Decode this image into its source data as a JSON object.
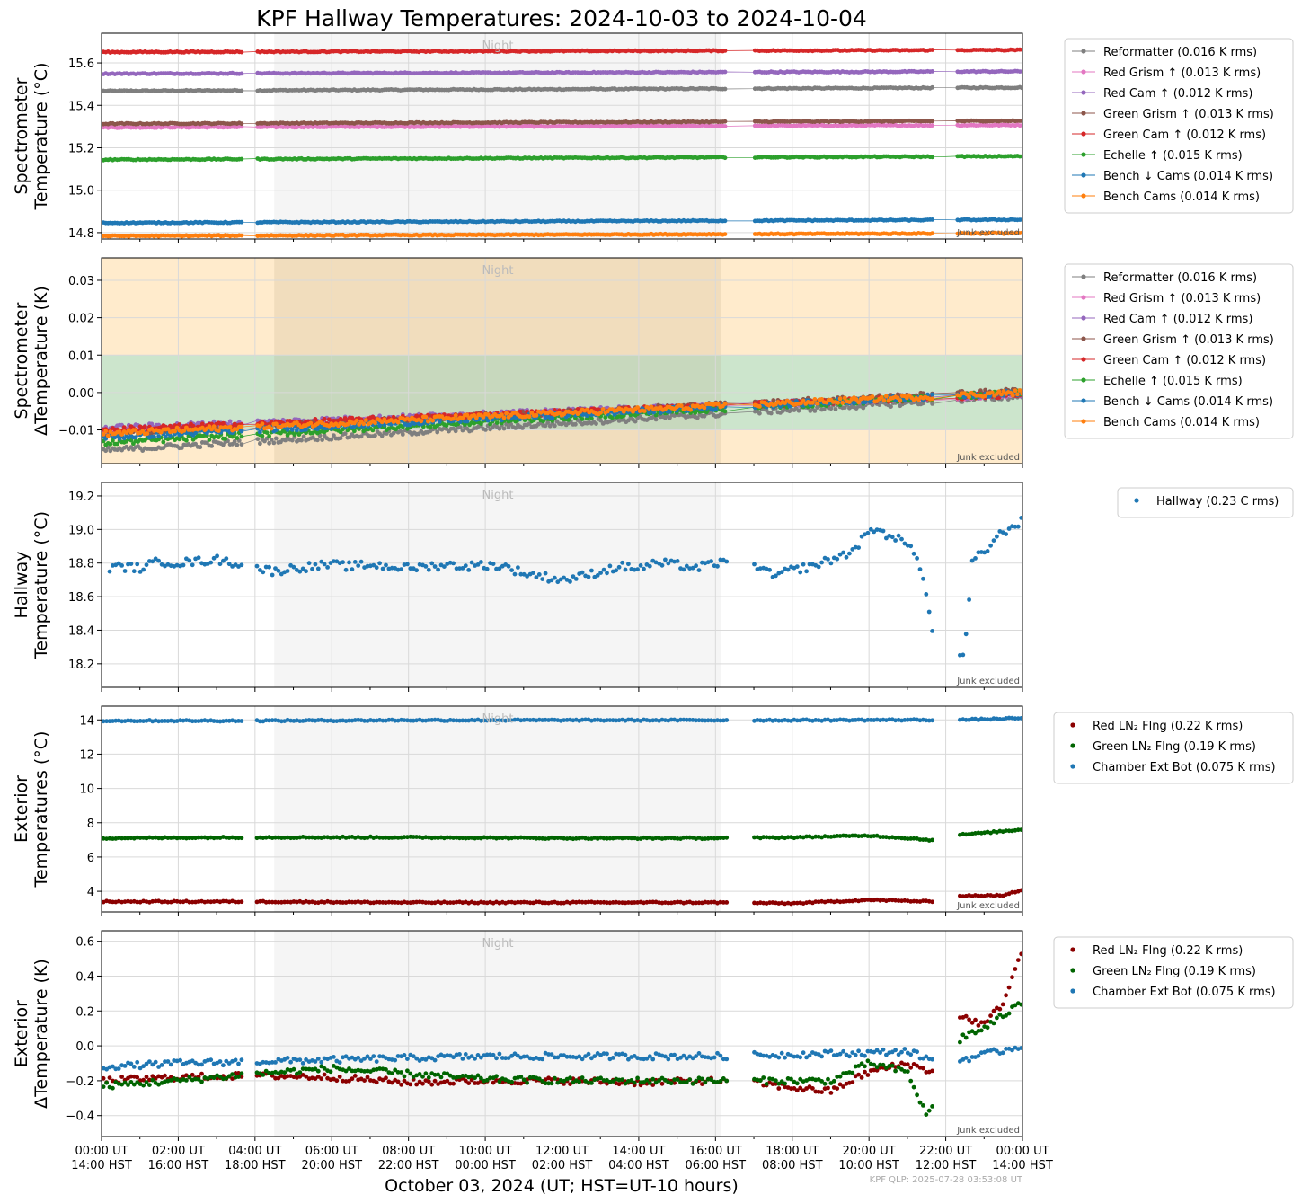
{
  "figure": {
    "title": "KPF Hallway Temperatures: 2024-10-03 to 2024-10-04",
    "xlabel": "October 03, 2024 (UT; HST=UT-10 hours)",
    "footer": "KPF QLP: 2025-07-28 03:53:08 UT",
    "night_label": "Night",
    "junk_label": "Junk excluded",
    "colors": {
      "night_shade": "#f5f5f5",
      "grid": "#d9d9d9",
      "band_warn": "#ffebcc",
      "band_ok": "#cce5cc"
    }
  },
  "x_ticks": [
    {
      "ut": "00:00 UT",
      "hst": "14:00 HST",
      "hour": 0
    },
    {
      "ut": "02:00 UT",
      "hst": "16:00 HST",
      "hour": 2
    },
    {
      "ut": "04:00 UT",
      "hst": "18:00 HST",
      "hour": 4
    },
    {
      "ut": "06:00 UT",
      "hst": "20:00 HST",
      "hour": 6
    },
    {
      "ut": "08:00 UT",
      "hst": "22:00 HST",
      "hour": 8
    },
    {
      "ut": "10:00 UT",
      "hst": "00:00 HST",
      "hour": 10
    },
    {
      "ut": "12:00 UT",
      "hst": "02:00 HST",
      "hour": 12
    },
    {
      "ut": "14:00 UT",
      "hst": "04:00 HST",
      "hour": 14
    },
    {
      "ut": "16:00 UT",
      "hst": "06:00 HST",
      "hour": 16
    },
    {
      "ut": "18:00 UT",
      "hst": "08:00 HST",
      "hour": 18
    },
    {
      "ut": "20:00 UT",
      "hst": "10:00 HST",
      "hour": 20
    },
    {
      "ut": "22:00 UT",
      "hst": "12:00 HST",
      "hour": 22
    },
    {
      "ut": "00:00 UT",
      "hst": "14:00 HST",
      "hour": 24
    }
  ],
  "chart_data": [
    {
      "type": "scatter",
      "panel": "spectrometer_temperature",
      "ylabel": [
        "Spectrometer",
        "Temperature (°C)"
      ],
      "ylim": [
        14.77,
        15.74
      ],
      "yticks": [
        14.8,
        15.0,
        15.2,
        15.4,
        15.6
      ],
      "xlim_hours": [
        0,
        24
      ],
      "night_hours": [
        4.5,
        16.15
      ],
      "grid": true,
      "legend_placement": "outside-right",
      "series": [
        {
          "name": "Reformatter (0.016 K rms)",
          "color": "#7f7f7f",
          "start": 15.468,
          "end": 15.484
        },
        {
          "name": "Red Grism ↑ (0.013 K rms)",
          "color": "#e377c2",
          "start": 15.296,
          "end": 15.307
        },
        {
          "name": "Red Cam ↑ (0.012 K rms)",
          "color": "#9467bd",
          "start": 15.549,
          "end": 15.56
        },
        {
          "name": "Green Grism ↑ (0.013 K rms)",
          "color": "#8c564b",
          "start": 15.313,
          "end": 15.327
        },
        {
          "name": "Green Cam ↑ (0.012 K rms)",
          "color": "#d62728",
          "start": 15.651,
          "end": 15.661
        },
        {
          "name": "Echelle ↑ (0.015 K rms)",
          "color": "#2ca02c",
          "start": 15.144,
          "end": 15.16
        },
        {
          "name": "Bench ↓ Cams (0.014 K rms)",
          "color": "#1f77b4",
          "start": 14.846,
          "end": 14.861
        },
        {
          "name": "Bench Cams (0.014 K rms)",
          "color": "#ff7f0e",
          "start": 14.784,
          "end": 14.797
        }
      ]
    },
    {
      "type": "scatter",
      "panel": "spectrometer_delta",
      "ylabel": [
        "Spectrometer",
        "ΔTemperature (K)"
      ],
      "ylim": [
        -0.019,
        0.036
      ],
      "yticks": [
        -0.01,
        0.0,
        0.01,
        0.02,
        0.03
      ],
      "ytick_labels": [
        "−0.01",
        "0.00",
        "0.01",
        "0.02",
        "0.03"
      ],
      "ok_band": [
        -0.01,
        0.01
      ],
      "xlim_hours": [
        0,
        24
      ],
      "night_hours": [
        4.5,
        16.15
      ],
      "grid": true,
      "legend_placement": "outside-right",
      "series": [
        {
          "name": "Reformatter (0.016 K rms)",
          "color": "#7f7f7f",
          "start": -0.0155,
          "end": -0.001
        },
        {
          "name": "Red Grism ↑ (0.013 K rms)",
          "color": "#e377c2",
          "start": -0.0105,
          "end": -0.0005
        },
        {
          "name": "Red Cam ↑ (0.012 K rms)",
          "color": "#9467bd",
          "start": -0.0095,
          "end": -0.0005
        },
        {
          "name": "Green Grism ↑ (0.013 K rms)",
          "color": "#8c564b",
          "start": -0.011,
          "end": 0.0005
        },
        {
          "name": "Green Cam ↑ (0.012 K rms)",
          "color": "#d62728",
          "start": -0.01,
          "end": -0.0005
        },
        {
          "name": "Echelle ↑ (0.015 K rms)",
          "color": "#2ca02c",
          "start": -0.0135,
          "end": 0.0
        },
        {
          "name": "Bench ↓ Cams (0.014 K rms)",
          "color": "#1f77b4",
          "start": -0.012,
          "end": 0.0
        },
        {
          "name": "Bench Cams (0.014 K rms)",
          "color": "#ff7f0e",
          "start": -0.011,
          "end": 0.0
        }
      ]
    },
    {
      "type": "scatter",
      "panel": "hallway",
      "ylabel": [
        "Hallway",
        "Temperature (°C)"
      ],
      "ylim": [
        18.06,
        19.28
      ],
      "yticks": [
        18.2,
        18.4,
        18.6,
        18.8,
        19.0,
        19.2
      ],
      "xlim_hours": [
        0,
        24
      ],
      "night_hours": [
        4.5,
        16.15
      ],
      "grid": true,
      "legend_placement": "outside-right",
      "series": [
        {
          "name": "Hallway (0.23 C rms)",
          "color": "#1f77b4",
          "points": [
            [
              0.2,
              18.77
            ],
            [
              0.5,
              18.78
            ],
            [
              1.0,
              18.77
            ],
            [
              1.5,
              18.81
            ],
            [
              2.0,
              18.8
            ],
            [
              2.5,
              18.81
            ],
            [
              3.0,
              18.82
            ],
            [
              3.5,
              18.8
            ],
            [
              4.5,
              18.75
            ],
            [
              5.0,
              18.77
            ],
            [
              5.5,
              18.78
            ],
            [
              6.0,
              18.79
            ],
            [
              6.5,
              18.78
            ],
            [
              7.0,
              18.79
            ],
            [
              7.5,
              18.78
            ],
            [
              8.0,
              18.77
            ],
            [
              8.5,
              18.78
            ],
            [
              9.0,
              18.79
            ],
            [
              9.5,
              18.78
            ],
            [
              10.0,
              18.79
            ],
            [
              10.5,
              18.78
            ],
            [
              11.0,
              18.74
            ],
            [
              11.5,
              18.72
            ],
            [
              12.0,
              18.7
            ],
            [
              12.5,
              18.72
            ],
            [
              13.0,
              18.75
            ],
            [
              13.5,
              18.78
            ],
            [
              14.0,
              18.77
            ],
            [
              14.5,
              18.8
            ],
            [
              15.0,
              18.79
            ],
            [
              15.5,
              18.77
            ],
            [
              16.0,
              18.8
            ],
            [
              17.0,
              18.8
            ],
            [
              17.5,
              18.72
            ],
            [
              18.0,
              18.76
            ],
            [
              18.5,
              18.78
            ],
            [
              19.0,
              18.82
            ],
            [
              19.5,
              18.86
            ],
            [
              20.0,
              18.98
            ],
            [
              20.3,
              19.02
            ],
            [
              20.5,
              18.95
            ],
            [
              21.0,
              18.93
            ],
            [
              21.3,
              18.8
            ],
            [
              21.5,
              18.6
            ],
            [
              21.7,
              18.35
            ],
            [
              21.9,
              18.18
            ],
            [
              22.1,
              18.12
            ],
            [
              22.3,
              18.2
            ],
            [
              22.5,
              18.28
            ],
            [
              22.7,
              18.82
            ],
            [
              23.0,
              18.86
            ],
            [
              23.3,
              18.95
            ],
            [
              23.6,
              19.0
            ],
            [
              24.0,
              19.05
            ]
          ]
        }
      ]
    },
    {
      "type": "scatter",
      "panel": "exterior_temperature",
      "ylabel": [
        "Exterior",
        "Temperatures (°C)"
      ],
      "ylim": [
        2.8,
        14.8
      ],
      "yticks": [
        4,
        6,
        8,
        10,
        12,
        14
      ],
      "xlim_hours": [
        0,
        24
      ],
      "night_hours": [
        4.5,
        16.15
      ],
      "grid": true,
      "legend_placement": "outside-right",
      "series": [
        {
          "name": "Red LN₂ Flng (0.22 K rms)",
          "color": "#8b0000",
          "points": [
            [
              0,
              3.4
            ],
            [
              4,
              3.4
            ],
            [
              8,
              3.35
            ],
            [
              12,
              3.35
            ],
            [
              16,
              3.35
            ],
            [
              18,
              3.3
            ],
            [
              20,
              3.5
            ],
            [
              21.6,
              3.4
            ],
            [
              22.4,
              3.75
            ],
            [
              23.5,
              3.75
            ],
            [
              24,
              4.1
            ]
          ]
        },
        {
          "name": "Green LN₂ Flng (0.19 K rms)",
          "color": "#006400",
          "points": [
            [
              0,
              7.1
            ],
            [
              4,
              7.15
            ],
            [
              8,
              7.15
            ],
            [
              12,
              7.1
            ],
            [
              16,
              7.1
            ],
            [
              18,
              7.15
            ],
            [
              20,
              7.25
            ],
            [
              21,
              7.1
            ],
            [
              21.6,
              7.0
            ],
            [
              22.4,
              7.3
            ],
            [
              24,
              7.6
            ]
          ]
        },
        {
          "name": "Chamber Ext Bot (0.075 K rms)",
          "color": "#1f77b4",
          "points": [
            [
              0,
              13.95
            ],
            [
              4,
              13.95
            ],
            [
              8,
              13.98
            ],
            [
              12,
              13.98
            ],
            [
              16,
              13.98
            ],
            [
              18,
              13.98
            ],
            [
              21.6,
              14.0
            ],
            [
              22.4,
              14.0
            ],
            [
              24,
              14.1
            ]
          ]
        }
      ]
    },
    {
      "type": "scatter",
      "panel": "exterior_delta",
      "ylabel": [
        "Exterior",
        "ΔTemperature (K)"
      ],
      "ylim": [
        -0.52,
        0.66
      ],
      "yticks": [
        -0.4,
        -0.2,
        0.0,
        0.2,
        0.4,
        0.6
      ],
      "ytick_labels": [
        "−0.4",
        "−0.2",
        "0.0",
        "0.2",
        "0.4",
        "0.6"
      ],
      "xlim_hours": [
        0,
        24
      ],
      "night_hours": [
        4.5,
        16.15
      ],
      "grid": true,
      "legend_placement": "outside-right",
      "series": [
        {
          "name": "Red LN₂ Flng (0.22 K rms)",
          "color": "#8b0000",
          "points": [
            [
              0,
              -0.2
            ],
            [
              2,
              -0.18
            ],
            [
              4,
              -0.17
            ],
            [
              6,
              -0.18
            ],
            [
              8,
              -0.21
            ],
            [
              10,
              -0.2
            ],
            [
              12,
              -0.2
            ],
            [
              14,
              -0.21
            ],
            [
              16,
              -0.2
            ],
            [
              17,
              -0.21
            ],
            [
              18,
              -0.24
            ],
            [
              19,
              -0.26
            ],
            [
              20,
              -0.15
            ],
            [
              21,
              -0.1
            ],
            [
              21.6,
              -0.15
            ],
            [
              22.4,
              0.17
            ],
            [
              23,
              0.12
            ],
            [
              23.5,
              0.25
            ],
            [
              24,
              0.55
            ]
          ]
        },
        {
          "name": "Green LN₂ Flng (0.19 K rms)",
          "color": "#006400",
          "points": [
            [
              0,
              -0.23
            ],
            [
              2,
              -0.2
            ],
            [
              4,
              -0.16
            ],
            [
              6,
              -0.13
            ],
            [
              8,
              -0.16
            ],
            [
              10,
              -0.19
            ],
            [
              12,
              -0.2
            ],
            [
              14,
              -0.2
            ],
            [
              16,
              -0.2
            ],
            [
              17,
              -0.2
            ],
            [
              18,
              -0.2
            ],
            [
              19,
              -0.2
            ],
            [
              20,
              -0.1
            ],
            [
              21,
              -0.15
            ],
            [
              21.5,
              -0.4
            ],
            [
              21.8,
              -0.3
            ],
            [
              22.4,
              0.05
            ],
            [
              23,
              0.1
            ],
            [
              24,
              0.25
            ]
          ]
        },
        {
          "name": "Chamber Ext Bot (0.075 K rms)",
          "color": "#1f77b4",
          "points": [
            [
              0,
              -0.12
            ],
            [
              2,
              -0.1
            ],
            [
              4,
              -0.09
            ],
            [
              6,
              -0.08
            ],
            [
              8,
              -0.07
            ],
            [
              10,
              -0.06
            ],
            [
              12,
              -0.06
            ],
            [
              14,
              -0.06
            ],
            [
              16,
              -0.06
            ],
            [
              18,
              -0.05
            ],
            [
              20,
              -0.04
            ],
            [
              21,
              -0.03
            ],
            [
              21.6,
              -0.08
            ],
            [
              22.4,
              -0.08
            ],
            [
              23,
              -0.05
            ],
            [
              24,
              0.0
            ]
          ]
        }
      ]
    }
  ]
}
